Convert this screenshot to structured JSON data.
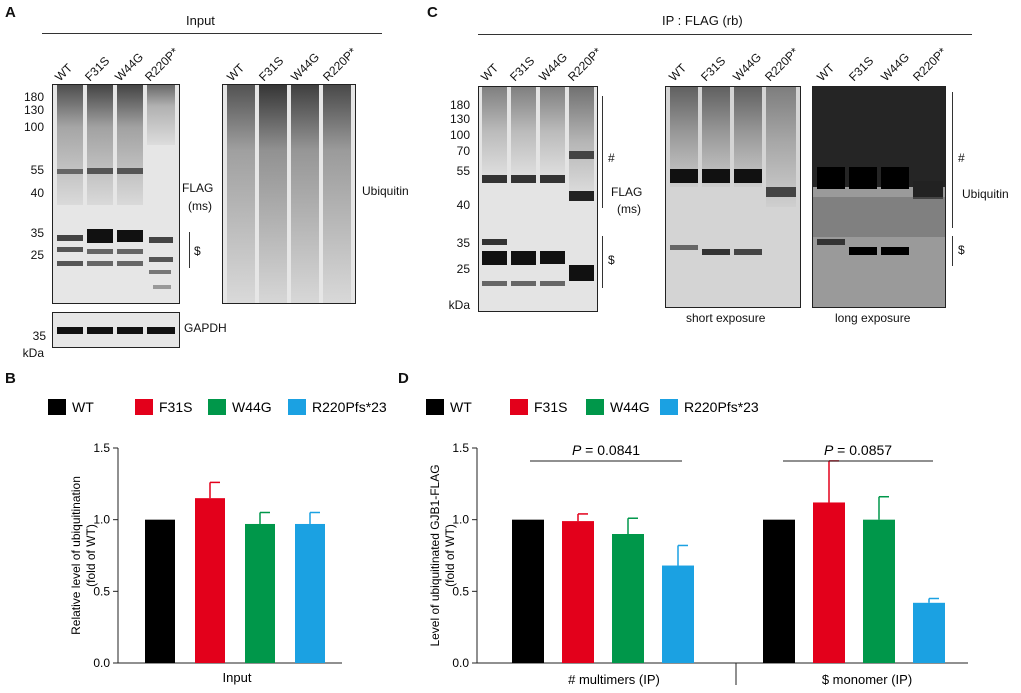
{
  "panels": {
    "a": "A",
    "b": "B",
    "c": "C",
    "d": "D"
  },
  "lanes": [
    "WT",
    "F31S",
    "W44G",
    "R220P*"
  ],
  "panelA": {
    "header": "Input",
    "mw": [
      "180",
      "130",
      "100",
      "55",
      "40",
      "35",
      "25"
    ],
    "gapdh_mw": "35",
    "kda": "kDa",
    "flag_label": "FLAG",
    "flag_sub": "(ms)",
    "dollar": "$",
    "ubiquitin_label": "Ubiquitin",
    "gapdh_label": "GAPDH"
  },
  "panelC": {
    "header": "IP : FLAG (rb)",
    "mw": [
      "180",
      "130",
      "100",
      "70",
      "55",
      "40",
      "35",
      "25"
    ],
    "kda": "kDa",
    "hash": "#",
    "flag_label": "FLAG",
    "flag_sub": "(ms)",
    "dollar": "$",
    "ubiquitin_label": "Ubiquitin",
    "short_exposure": "short exposure",
    "long_exposure": "long exposure"
  },
  "colors": {
    "wt": "#000000",
    "f31s": "#e3001b",
    "w44g": "#00974a",
    "r220": "#1ba1e2"
  },
  "legend": [
    "WT",
    "F31S",
    "W44G",
    "R220Pfs*23"
  ],
  "chart_data": [
    {
      "type": "bar",
      "panel": "B",
      "categories": [
        "Input"
      ],
      "series": [
        {
          "name": "WT",
          "values": [
            1.0
          ],
          "error": [
            0
          ]
        },
        {
          "name": "F31S",
          "values": [
            1.15
          ],
          "error": [
            0.11
          ]
        },
        {
          "name": "W44G",
          "values": [
            0.97
          ],
          "error": [
            0.08
          ]
        },
        {
          "name": "R220Pfs*23",
          "values": [
            0.97
          ],
          "error": [
            0.08
          ]
        }
      ],
      "ylabel": "Relative level of ubiquitination",
      "ylabel2": "(fold of WT)",
      "xlabel": "Input",
      "ylim": [
        0,
        1.5
      ],
      "yticks": [
        "0.0",
        "0.5",
        "1.0",
        "1.5"
      ]
    },
    {
      "type": "bar",
      "panel": "D",
      "categories": [
        "#  multimers (IP)",
        "$  monomer (IP)"
      ],
      "series": [
        {
          "name": "WT",
          "values": [
            1.0,
            1.0
          ],
          "error": [
            0,
            0
          ]
        },
        {
          "name": "F31S",
          "values": [
            0.99,
            1.12
          ],
          "error": [
            0.05,
            0.29
          ]
        },
        {
          "name": "W44G",
          "values": [
            0.9,
            1.0
          ],
          "error": [
            0.11,
            0.16
          ]
        },
        {
          "name": "R220Pfs*23",
          "values": [
            0.68,
            0.42
          ],
          "error": [
            0.14,
            0.03
          ]
        }
      ],
      "ylabel": "Level of ubiquitinated GJB1-FLAG",
      "ylabel2": "(fold of WT)",
      "pvalues": [
        {
          "prefix": "P",
          "text": " = 0.0841"
        },
        {
          "prefix": "P",
          "text": " = 0.0857"
        }
      ],
      "ylim": [
        0,
        1.5
      ],
      "yticks": [
        "0.0",
        "0.5",
        "1.0",
        "1.5"
      ]
    }
  ]
}
